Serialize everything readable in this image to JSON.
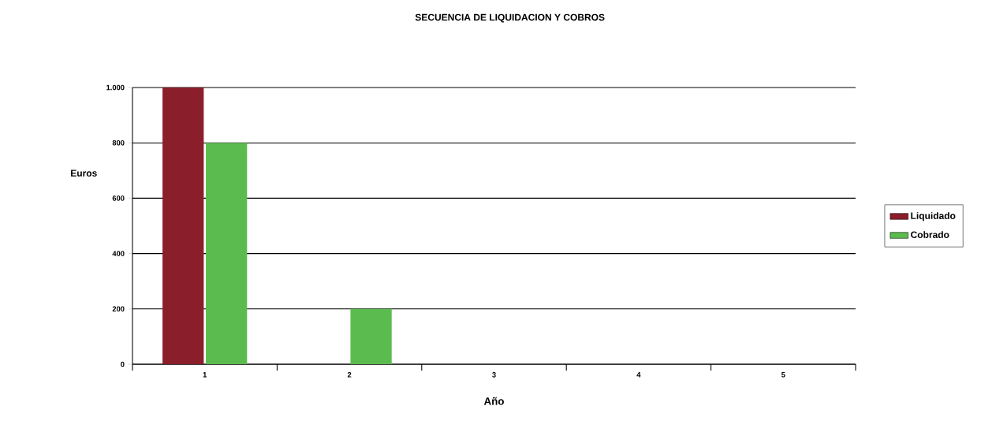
{
  "chart_data": {
    "type": "bar",
    "title": "SECUENCIA DE LIQUIDACION Y COBROS",
    "xlabel": "Año",
    "ylabel": "Euros",
    "categories": [
      "1",
      "2",
      "3",
      "4",
      "5"
    ],
    "series": [
      {
        "name": "Liquidado",
        "color": "#8b1e2b",
        "values": [
          1000,
          0,
          0,
          0,
          0
        ]
      },
      {
        "name": "Cobrado",
        "color": "#5cbb4f",
        "values": [
          800,
          200,
          0,
          0,
          0
        ]
      }
    ],
    "ylim": [
      0,
      1000
    ],
    "yticks": [
      0,
      200,
      400,
      600,
      800,
      {
        "value": 1000,
        "label": "1.000"
      }
    ],
    "grid": "y",
    "legend": "right"
  }
}
